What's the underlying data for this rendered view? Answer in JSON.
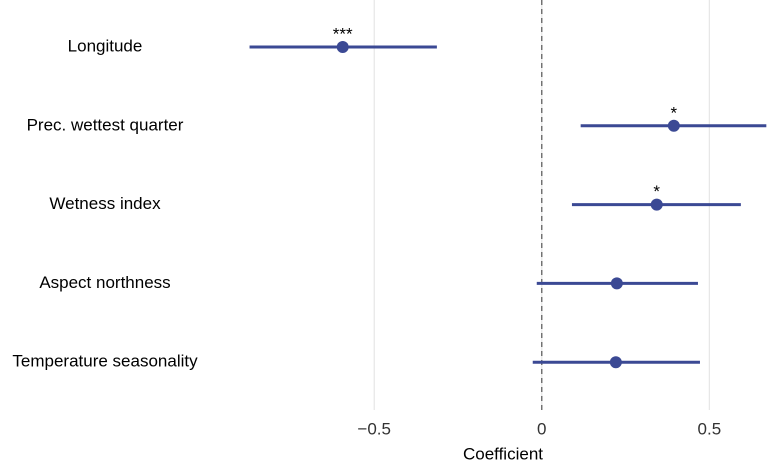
{
  "chart_data": {
    "type": "coefplot",
    "x_label": "Coefficient",
    "categories": [
      "Longitude",
      "Prec. wettest quarter",
      "Wetness index",
      "Aspect northness",
      "Temperature seasonality"
    ],
    "values": [
      -0.594,
      0.394,
      0.343,
      0.224,
      0.221
    ],
    "lower": [
      -0.872,
      0.116,
      0.09,
      -0.015,
      -0.027
    ],
    "upper": [
      -0.313,
      0.67,
      0.594,
      0.466,
      0.472
    ],
    "significance": [
      "***",
      "*",
      "*",
      null,
      null
    ],
    "color": "#3b4994",
    "xlim": [
      -0.99,
      0.672
    ],
    "xticks": [
      {
        "value": -0.5,
        "label": "−0.5"
      },
      0,
      0.5
    ],
    "grid": true,
    "zero_line": true
  }
}
